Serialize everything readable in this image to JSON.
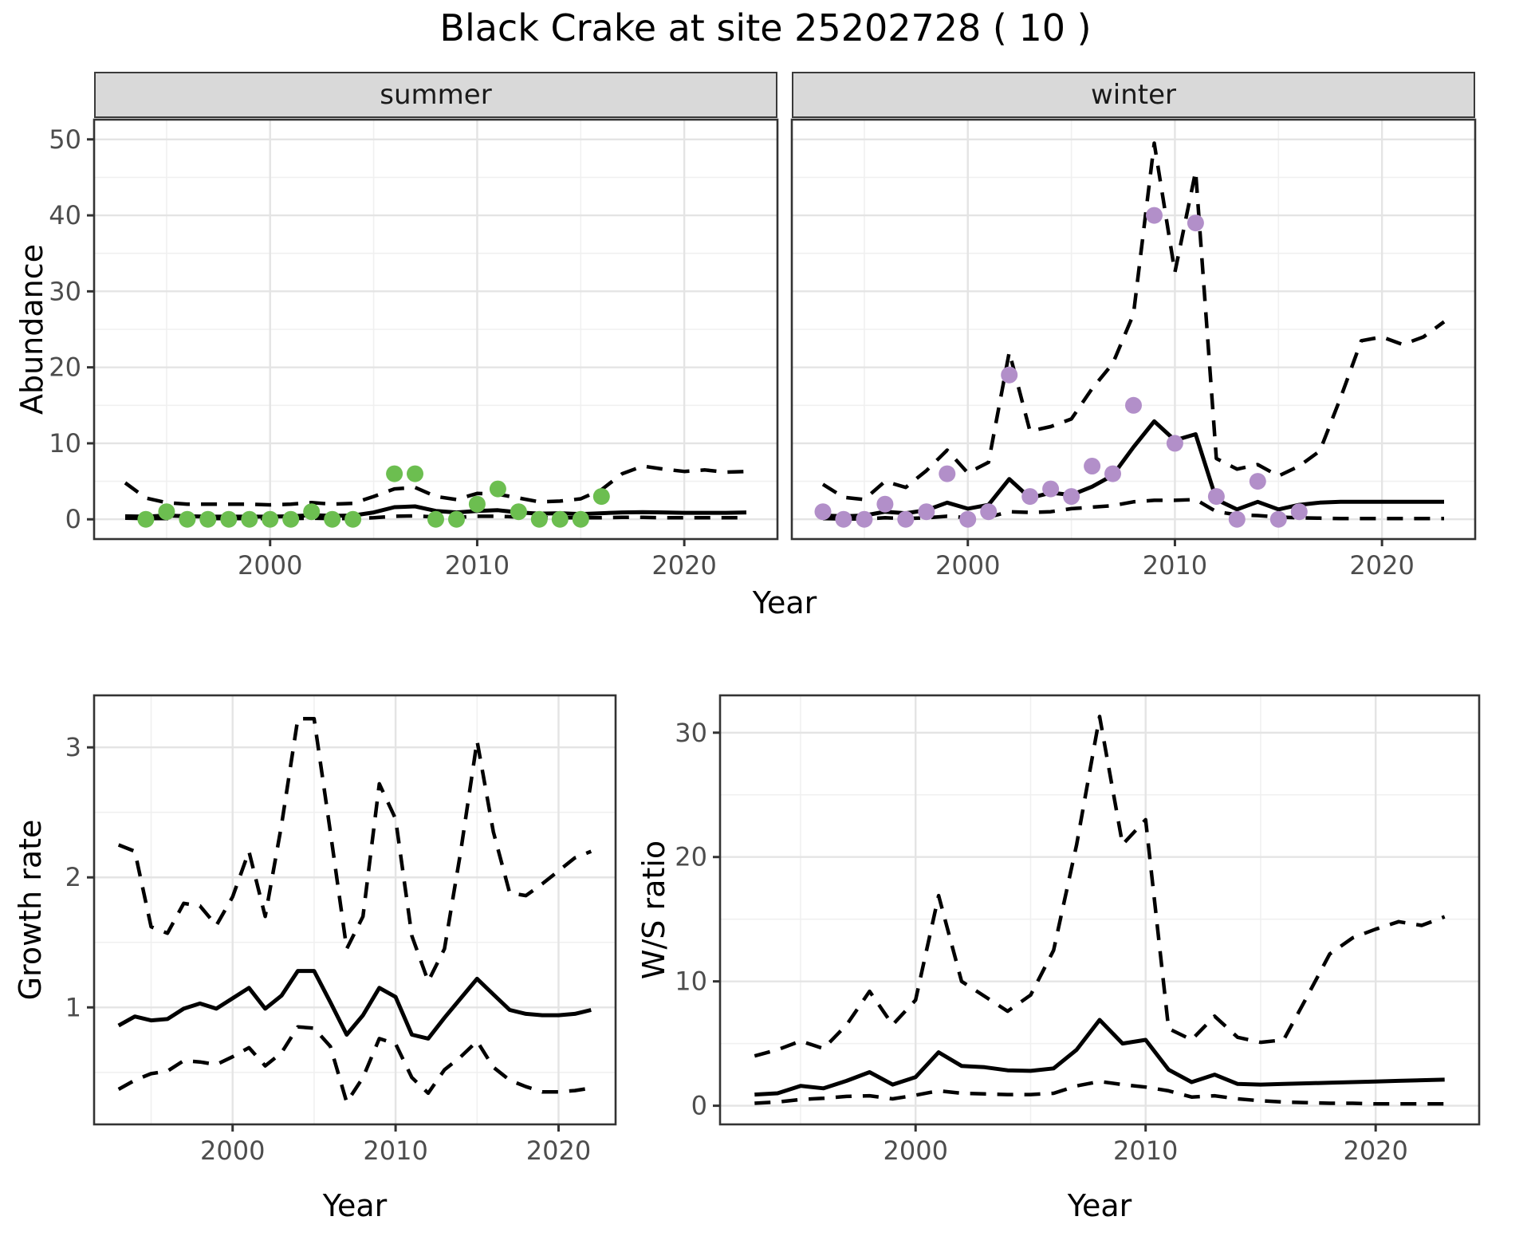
{
  "title": "Black Crake at site 25202728 ( 10 )",
  "axis_titles": {
    "top_y": "Abundance",
    "top_x": "Year",
    "bottom_left_y": "Growth rate",
    "bottom_left_x": "Year",
    "bottom_right_y": "W/S ratio",
    "bottom_right_x": "Year"
  },
  "facet_labels": {
    "summer": "summer",
    "winter": "winter"
  },
  "colors": {
    "point_summer": "#6CBE50",
    "point_winter": "#B28FC9",
    "line": "#000000",
    "strip_bg": "#D9D9D9",
    "grid_major": "#E4E4E4",
    "grid_minor": "#F0F0F0",
    "panel_border": "#333333",
    "tick_text": "#4D4D4D"
  },
  "chart_data": [
    {
      "id": "abundance-summer",
      "type": "line",
      "facet_label": "summer",
      "xlabel": "Year",
      "ylabel": "Abundance",
      "x_domain": [
        1991.5,
        2024.5
      ],
      "y_domain": [
        -2.6,
        52.6
      ],
      "x_ticks": [
        2000,
        2010,
        2020
      ],
      "x_minor": [
        1995,
        2005,
        2015
      ],
      "y_ticks": [
        0,
        10,
        20,
        30,
        40,
        50
      ],
      "y_minor": [
        5,
        15,
        25,
        35,
        45
      ],
      "series": [
        {
          "name": "upper-ci",
          "style": "dashed",
          "x": [
            1993,
            1994,
            1995,
            1996,
            1997,
            1998,
            1999,
            2000,
            2001,
            2002,
            2003,
            2004,
            2005,
            2006,
            2007,
            2008,
            2009,
            2010,
            2011,
            2012,
            2013,
            2014,
            2015,
            2016,
            2017,
            2018,
            2019,
            2020,
            2021,
            2022,
            2023
          ],
          "y": [
            4.8,
            2.8,
            2.2,
            2.0,
            2.0,
            2.0,
            2.0,
            1.9,
            2.0,
            2.2,
            2.0,
            2.1,
            3.0,
            4.0,
            4.2,
            3.0,
            2.6,
            3.4,
            3.3,
            2.8,
            2.3,
            2.4,
            2.7,
            3.9,
            6.0,
            7.0,
            6.6,
            6.3,
            6.5,
            6.2,
            6.3
          ]
        },
        {
          "name": "lower-ci",
          "style": "dashed",
          "x": [
            1993,
            1994,
            1995,
            1996,
            1997,
            1998,
            1999,
            2000,
            2001,
            2002,
            2003,
            2004,
            2005,
            2006,
            2007,
            2008,
            2009,
            2010,
            2011,
            2012,
            2013,
            2014,
            2015,
            2016,
            2017,
            2018,
            2019,
            2020,
            2021,
            2022,
            2023
          ],
          "y": [
            0.15,
            0.1,
            0.1,
            0.1,
            0.1,
            0.1,
            0.1,
            0.1,
            0.1,
            0.15,
            0.1,
            0.1,
            0.2,
            0.4,
            0.45,
            0.3,
            0.25,
            0.4,
            0.4,
            0.3,
            0.2,
            0.2,
            0.2,
            0.2,
            0.25,
            0.25,
            0.2,
            0.2,
            0.2,
            0.2,
            0.2
          ]
        },
        {
          "name": "mean",
          "style": "solid",
          "x": [
            1993,
            1994,
            1995,
            1996,
            1997,
            1998,
            1999,
            2000,
            2001,
            2002,
            2003,
            2004,
            2005,
            2006,
            2007,
            2008,
            2009,
            2010,
            2011,
            2012,
            2013,
            2014,
            2015,
            2016,
            2017,
            2018,
            2019,
            2020,
            2021,
            2022,
            2023
          ],
          "y": [
            0.4,
            0.35,
            0.5,
            0.4,
            0.35,
            0.35,
            0.35,
            0.35,
            0.4,
            0.55,
            0.45,
            0.5,
            0.9,
            1.6,
            1.7,
            1.1,
            0.9,
            1.1,
            1.2,
            0.9,
            0.75,
            0.8,
            0.7,
            0.8,
            0.9,
            0.95,
            0.9,
            0.85,
            0.85,
            0.85,
            0.9
          ]
        }
      ],
      "points": {
        "name": "observed-counts-summer",
        "color_key": "point_summer",
        "x": [
          1994,
          1995,
          1996,
          1997,
          1998,
          1999,
          2000,
          2001,
          2002,
          2003,
          2004,
          2006,
          2007,
          2008,
          2009,
          2010,
          2011,
          2012,
          2013,
          2014,
          2015,
          2016
        ],
        "y": [
          0,
          1,
          0,
          0,
          0,
          0,
          0,
          0,
          1,
          0,
          0,
          6,
          6,
          0,
          0,
          2,
          4,
          1,
          0,
          0,
          0,
          3
        ]
      }
    },
    {
      "id": "abundance-winter",
      "type": "line",
      "facet_label": "winter",
      "xlabel": "Year",
      "ylabel": "Abundance",
      "x_domain": [
        1991.5,
        2024.5
      ],
      "y_domain": [
        -2.6,
        52.6
      ],
      "x_ticks": [
        2000,
        2010,
        2020
      ],
      "x_minor": [
        1995,
        2005,
        2015
      ],
      "y_ticks": [
        0,
        10,
        20,
        30,
        40,
        50
      ],
      "y_minor": [
        5,
        15,
        25,
        35,
        45
      ],
      "series": [
        {
          "name": "upper-ci",
          "style": "dashed",
          "x": [
            1993,
            1994,
            1995,
            1996,
            1997,
            1998,
            1999,
            2000,
            2001,
            2002,
            2003,
            2004,
            2005,
            2006,
            2007,
            2008,
            2009,
            2010,
            2011,
            2012,
            2013,
            2014,
            2015,
            2016,
            2017,
            2018,
            2019,
            2020,
            2021,
            2022,
            2023
          ],
          "y": [
            4.6,
            2.9,
            2.6,
            5.0,
            4.2,
            6.4,
            9.1,
            6.1,
            7.5,
            22.0,
            11.6,
            12.2,
            13.2,
            17.2,
            20.5,
            27.0,
            49.5,
            32.5,
            45.8,
            8.0,
            6.6,
            7.2,
            5.7,
            7.0,
            9.0,
            16.0,
            23.5,
            24.0,
            23.0,
            24.0,
            26.0
          ]
        },
        {
          "name": "lower-ci",
          "style": "dashed",
          "x": [
            1993,
            1994,
            1995,
            1996,
            1997,
            1998,
            1999,
            2000,
            2001,
            2002,
            2003,
            2004,
            2005,
            2006,
            2007,
            2008,
            2009,
            2010,
            2011,
            2012,
            2013,
            2014,
            2015,
            2016,
            2017,
            2018,
            2019,
            2020,
            2021,
            2022,
            2023
          ],
          "y": [
            0.1,
            0.05,
            0.05,
            0.2,
            0.1,
            0.2,
            0.4,
            0.2,
            0.3,
            1.0,
            0.9,
            1.0,
            1.4,
            1.6,
            1.8,
            2.3,
            2.5,
            2.5,
            2.6,
            1.0,
            0.6,
            0.5,
            0.3,
            0.2,
            0.15,
            0.1,
            0.1,
            0.1,
            0.1,
            0.1,
            0.1
          ]
        },
        {
          "name": "mean",
          "style": "solid",
          "x": [
            1993,
            1994,
            1995,
            1996,
            1997,
            1998,
            1999,
            2000,
            2001,
            2002,
            2003,
            2004,
            2005,
            2006,
            2007,
            2008,
            2009,
            2010,
            2011,
            2012,
            2013,
            2014,
            2015,
            2016,
            2017,
            2018,
            2019,
            2020,
            2021,
            2022,
            2023
          ],
          "y": [
            0.5,
            0.4,
            0.5,
            1.0,
            0.8,
            1.2,
            2.2,
            1.4,
            1.9,
            5.3,
            2.8,
            3.5,
            3.2,
            4.3,
            5.8,
            9.5,
            12.9,
            10.4,
            11.2,
            2.6,
            1.3,
            2.3,
            1.3,
            1.9,
            2.2,
            2.3,
            2.3,
            2.3,
            2.3,
            2.3,
            2.3
          ]
        }
      ],
      "points": {
        "name": "observed-counts-winter",
        "color_key": "point_winter",
        "x": [
          1993,
          1994,
          1995,
          1996,
          1997,
          1998,
          1999,
          2000,
          2001,
          2002,
          2003,
          2004,
          2005,
          2006,
          2007,
          2008,
          2009,
          2010,
          2011,
          2012,
          2013,
          2014,
          2015,
          2016
        ],
        "y": [
          1,
          0,
          0,
          2,
          0,
          1,
          6,
          0,
          1,
          19,
          3,
          4,
          3,
          7,
          6,
          15,
          40,
          10,
          39,
          3,
          0,
          5,
          0,
          1
        ]
      }
    },
    {
      "id": "growth-rate",
      "type": "line",
      "facet_label": null,
      "xlabel": "Year",
      "ylabel": "Growth rate",
      "x_domain": [
        1991.5,
        2023.5
      ],
      "y_domain": [
        0.1,
        3.4
      ],
      "x_ticks": [
        2000,
        2010,
        2020
      ],
      "x_minor": [
        1995,
        2005,
        2015
      ],
      "y_ticks": [
        1,
        2,
        3
      ],
      "y_minor": [
        0.5,
        1.5,
        2.5
      ],
      "series": [
        {
          "name": "upper-ci",
          "style": "dashed",
          "x": [
            1993,
            1994,
            1995,
            1996,
            1997,
            1998,
            1999,
            2000,
            2001,
            2002,
            2003,
            2004,
            2005,
            2006,
            2007,
            2008,
            2009,
            2010,
            2011,
            2012,
            2013,
            2014,
            2015,
            2016,
            2017,
            2018,
            2019,
            2020,
            2021,
            2022
          ],
          "y": [
            2.25,
            2.2,
            1.62,
            1.57,
            1.8,
            1.78,
            1.63,
            1.85,
            2.2,
            1.7,
            2.4,
            3.22,
            3.22,
            2.35,
            1.45,
            1.7,
            2.72,
            2.45,
            1.55,
            1.2,
            1.45,
            2.2,
            3.05,
            2.35,
            1.88,
            1.86,
            1.95,
            2.05,
            2.15,
            2.2
          ]
        },
        {
          "name": "lower-ci",
          "style": "dashed",
          "x": [
            1993,
            1994,
            1995,
            1996,
            1997,
            1998,
            1999,
            2000,
            2001,
            2002,
            2003,
            2004,
            2005,
            2006,
            2007,
            2008,
            2009,
            2010,
            2011,
            2012,
            2013,
            2014,
            2015,
            2016,
            2017,
            2018,
            2019,
            2020,
            2021,
            2022
          ],
          "y": [
            0.37,
            0.44,
            0.49,
            0.51,
            0.59,
            0.58,
            0.56,
            0.62,
            0.69,
            0.55,
            0.65,
            0.85,
            0.84,
            0.7,
            0.27,
            0.46,
            0.76,
            0.72,
            0.46,
            0.34,
            0.52,
            0.62,
            0.74,
            0.54,
            0.44,
            0.39,
            0.35,
            0.35,
            0.36,
            0.38
          ]
        },
        {
          "name": "mean",
          "style": "solid",
          "x": [
            1993,
            1994,
            1995,
            1996,
            1997,
            1998,
            1999,
            2000,
            2001,
            2002,
            2003,
            2004,
            2005,
            2006,
            2007,
            2008,
            2009,
            2010,
            2011,
            2012,
            2013,
            2014,
            2015,
            2016,
            2017,
            2018,
            2019,
            2020,
            2021,
            2022
          ],
          "y": [
            0.86,
            0.93,
            0.9,
            0.91,
            0.99,
            1.03,
            0.99,
            1.07,
            1.15,
            0.99,
            1.09,
            1.28,
            1.28,
            1.04,
            0.79,
            0.94,
            1.15,
            1.08,
            0.79,
            0.76,
            0.92,
            1.07,
            1.22,
            1.1,
            0.98,
            0.95,
            0.94,
            0.94,
            0.95,
            0.98
          ]
        }
      ],
      "points": null
    },
    {
      "id": "ws-ratio",
      "type": "line",
      "facet_label": null,
      "xlabel": "Year",
      "ylabel": "W/S ratio",
      "x_domain": [
        1991.5,
        2024.5
      ],
      "y_domain": [
        -1.5,
        33.0
      ],
      "x_ticks": [
        2000,
        2010,
        2020
      ],
      "x_minor": [
        1995,
        2005,
        2015
      ],
      "y_ticks": [
        0,
        10,
        20,
        30
      ],
      "y_minor": [
        5,
        15,
        25
      ],
      "series": [
        {
          "name": "upper-ci",
          "style": "dashed",
          "x": [
            1993,
            1994,
            1995,
            1996,
            1997,
            1998,
            1999,
            2000,
            2001,
            2002,
            2003,
            2004,
            2005,
            2006,
            2007,
            2008,
            2009,
            2010,
            2011,
            2012,
            2013,
            2014,
            2015,
            2016,
            2017,
            2018,
            2019,
            2020,
            2021,
            2022,
            2023
          ],
          "y": [
            4.0,
            4.5,
            5.2,
            4.6,
            6.5,
            9.2,
            6.5,
            8.5,
            16.9,
            10.0,
            8.8,
            7.6,
            8.9,
            12.5,
            21.0,
            31.3,
            21.0,
            23.0,
            6.2,
            5.3,
            7.2,
            5.5,
            5.1,
            5.3,
            8.7,
            12.2,
            13.5,
            14.2,
            14.8,
            14.5,
            15.2
          ]
        },
        {
          "name": "lower-ci",
          "style": "dashed",
          "x": [
            1993,
            1994,
            1995,
            1996,
            1997,
            1998,
            1999,
            2000,
            2001,
            2002,
            2003,
            2004,
            2005,
            2006,
            2007,
            2008,
            2009,
            2010,
            2011,
            2012,
            2013,
            2014,
            2015,
            2016,
            2017,
            2018,
            2019,
            2020,
            2021,
            2022,
            2023
          ],
          "y": [
            0.2,
            0.3,
            0.5,
            0.6,
            0.75,
            0.8,
            0.55,
            0.85,
            1.2,
            1.0,
            0.95,
            0.9,
            0.9,
            1.0,
            1.6,
            1.95,
            1.7,
            1.5,
            1.2,
            0.7,
            0.8,
            0.55,
            0.4,
            0.3,
            0.25,
            0.2,
            0.2,
            0.15,
            0.15,
            0.15,
            0.15
          ]
        },
        {
          "name": "mean",
          "style": "solid",
          "x": [
            1993,
            1994,
            1995,
            1996,
            1997,
            1998,
            1999,
            2000,
            2001,
            2002,
            2003,
            2004,
            2005,
            2006,
            2007,
            2008,
            2009,
            2010,
            2011,
            2012,
            2013,
            2014,
            2015,
            2016,
            2017,
            2018,
            2019,
            2020,
            2021,
            2022,
            2023
          ],
          "y": [
            0.9,
            1.0,
            1.6,
            1.4,
            2.0,
            2.7,
            1.7,
            2.3,
            4.3,
            3.2,
            3.1,
            2.85,
            2.8,
            3.0,
            4.5,
            6.9,
            5.0,
            5.3,
            2.9,
            1.9,
            2.5,
            1.75,
            1.7,
            1.75,
            1.8,
            1.85,
            1.9,
            1.95,
            2.0,
            2.05,
            2.1
          ]
        }
      ],
      "points": null
    }
  ]
}
